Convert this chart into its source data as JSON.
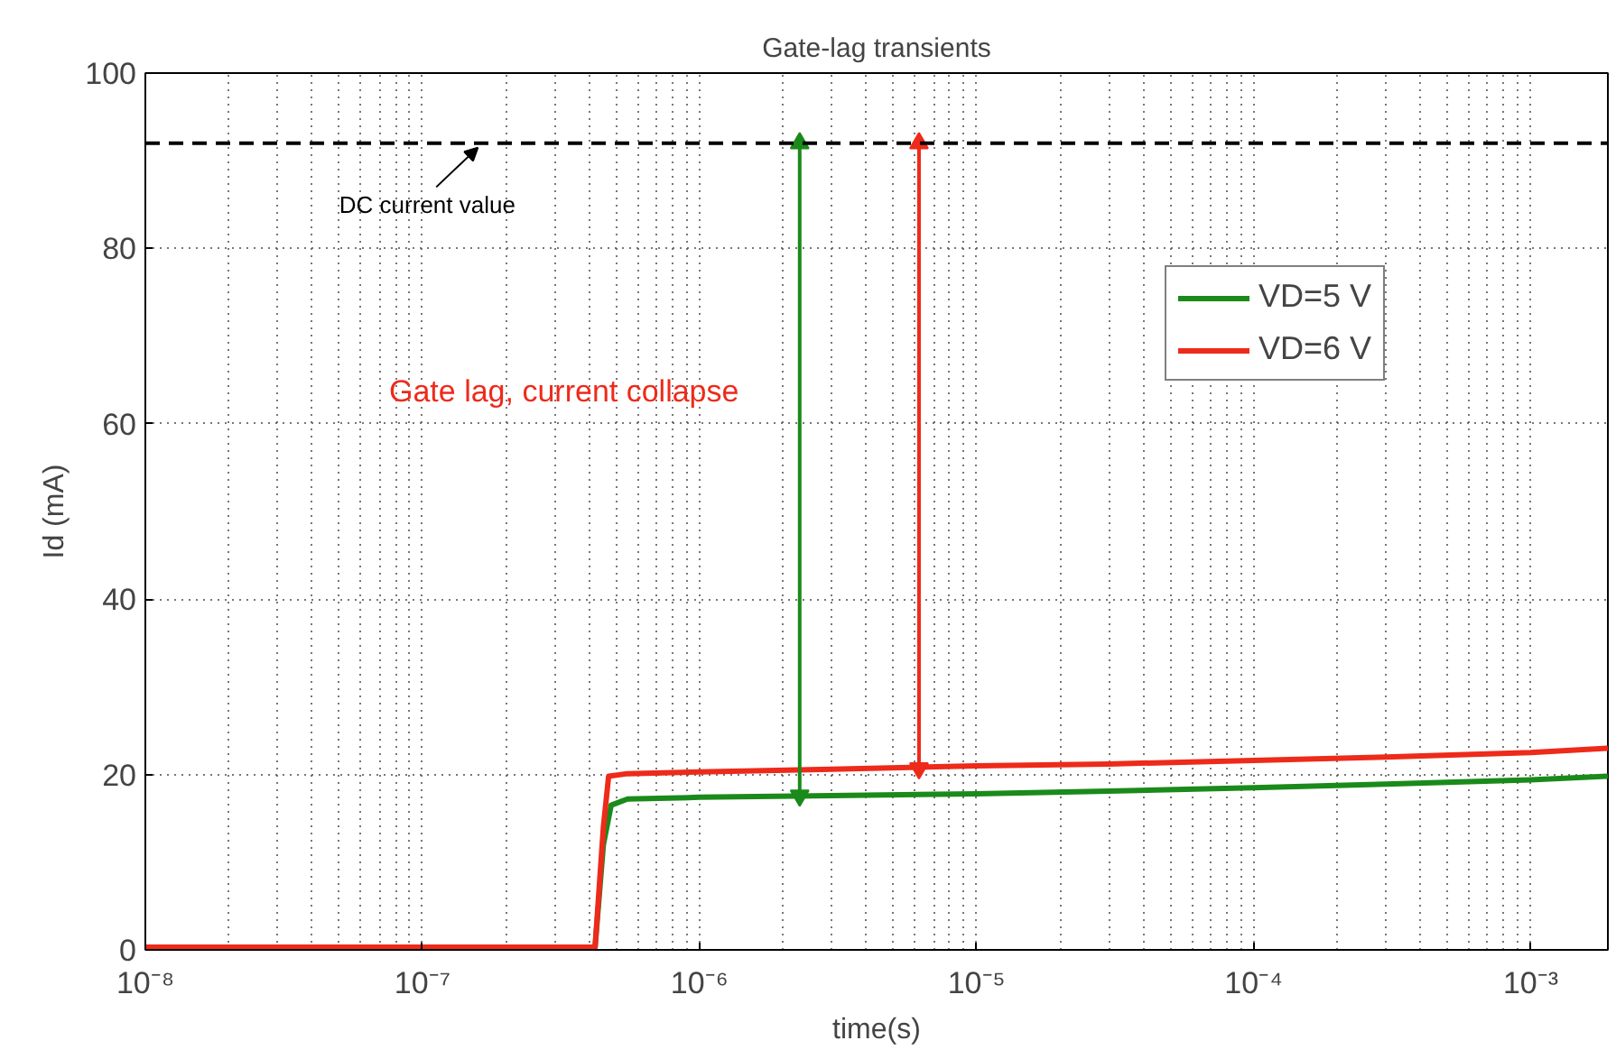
{
  "chart_data": {
    "type": "line",
    "title": "Gate-lag transients",
    "xlabel": "time(s)",
    "ylabel": "Id (mA)",
    "log": "x",
    "grid": true,
    "legend": "top right",
    "line_style": "solid",
    "xlim": [
      1e-08,
      0.0019
    ],
    "ylim": [
      0,
      100
    ],
    "xticks": [
      {
        "value": 1e-08,
        "label": "10⁻⁸"
      },
      {
        "value": 1e-07,
        "label": "10⁻⁷"
      },
      {
        "value": 1e-06,
        "label": "10⁻⁶"
      },
      {
        "value": 1e-05,
        "label": "10⁻⁵"
      },
      {
        "value": 0.0001,
        "label": "10⁻⁴"
      },
      {
        "value": 0.001,
        "label": "10⁻³"
      }
    ],
    "yticks": [
      0,
      20,
      40,
      60,
      80,
      100
    ],
    "series": [
      {
        "name": "VD=5 V",
        "color": "#1a8a1a",
        "x": [
          1e-08,
          4.2e-07,
          4.5e-07,
          4.8e-07,
          5.5e-07,
          1e-06,
          3e-06,
          1e-05,
          3e-05,
          0.0001,
          0.0003,
          0.001,
          0.0019
        ],
        "values": [
          0.3,
          0.3,
          12,
          16.5,
          17.2,
          17.4,
          17.6,
          17.8,
          18.1,
          18.5,
          18.9,
          19.4,
          19.8
        ]
      },
      {
        "name": "VD=6 V",
        "color": "#ee2a1a",
        "x": [
          1e-08,
          4.2e-07,
          4.5e-07,
          4.7e-07,
          5.5e-07,
          1e-06,
          3e-06,
          1e-05,
          3e-05,
          0.0001,
          0.0003,
          0.001,
          0.0019
        ],
        "values": [
          0.3,
          0.3,
          14,
          19.8,
          20.1,
          20.3,
          20.6,
          21,
          21.2,
          21.6,
          22,
          22.5,
          23
        ]
      },
      {
        "type": "line",
        "color": "#1a8a1a",
        "x": [
          2.3e-06,
          2.3e-06
        ],
        "values": [
          17.6,
          92
        ],
        "marker": "triangle"
      },
      {
        "type": "line",
        "color": "#ee2a1a",
        "x": [
          6.2e-06,
          6.2e-06
        ],
        "values": [
          20.7,
          92
        ],
        "marker": "triangle"
      }
    ],
    "ref_lines": [
      {
        "axis": "y",
        "value": 92,
        "label": "DC  current value",
        "color": "#000000",
        "line_style": "dashed"
      }
    ],
    "annotations": [
      "Gate lag, current collapse"
    ]
  }
}
